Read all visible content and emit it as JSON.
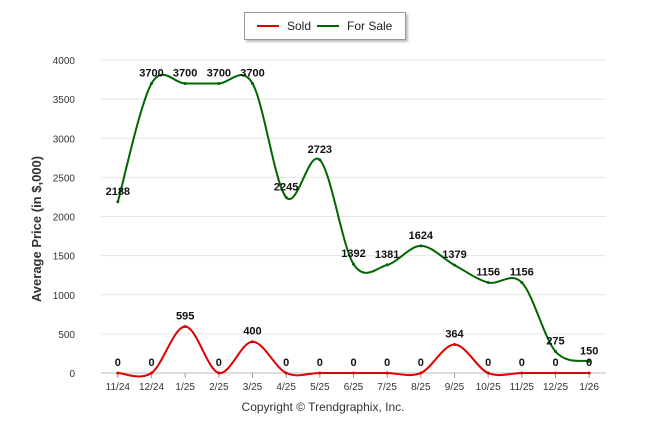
{
  "chart_data": {
    "type": "line",
    "title": "",
    "xlabel": "",
    "ylabel": "Average Price (in $,000)",
    "ylim": [
      0,
      4000
    ],
    "yticks": [
      "0",
      "500",
      "1000",
      "1500",
      "2000",
      "2500",
      "3000",
      "3500",
      "4000"
    ],
    "categories": [
      "11/24",
      "12/24",
      "1/25",
      "2/25",
      "3/25",
      "4/25",
      "5/25",
      "6/25",
      "7/25",
      "8/25",
      "9/25",
      "10/25",
      "11/25",
      "12/25",
      "1/26"
    ],
    "series": [
      {
        "name": "Sold",
        "color": "#dd0000",
        "values": [
          0,
          0,
          595,
          0,
          400,
          0,
          0,
          0,
          0,
          0,
          364,
          0,
          0,
          0,
          0
        ],
        "labels": [
          "0",
          "0",
          "595",
          "0",
          "400",
          "0",
          "0",
          "0",
          "0",
          "0",
          "364",
          "0",
          "0",
          "0",
          "0"
        ]
      },
      {
        "name": "For Sale",
        "color": "#006600",
        "values": [
          2188,
          3700,
          3700,
          3700,
          3700,
          2245,
          2723,
          1392,
          1381,
          1624,
          1379,
          1156,
          1156,
          275,
          150
        ],
        "labels": [
          "2188",
          "3700",
          "3700",
          "3700",
          "3700",
          "2245",
          "2723",
          "1392",
          "1381",
          "1624",
          "1379",
          "1156",
          "1156",
          "275",
          "150"
        ]
      }
    ],
    "legend_position": "top-center",
    "grid": true
  },
  "legend": {
    "sold_label": "Sold",
    "for_sale_label": "For Sale"
  },
  "footer": {
    "copyright": "Copyright © Trendgraphix, Inc."
  }
}
